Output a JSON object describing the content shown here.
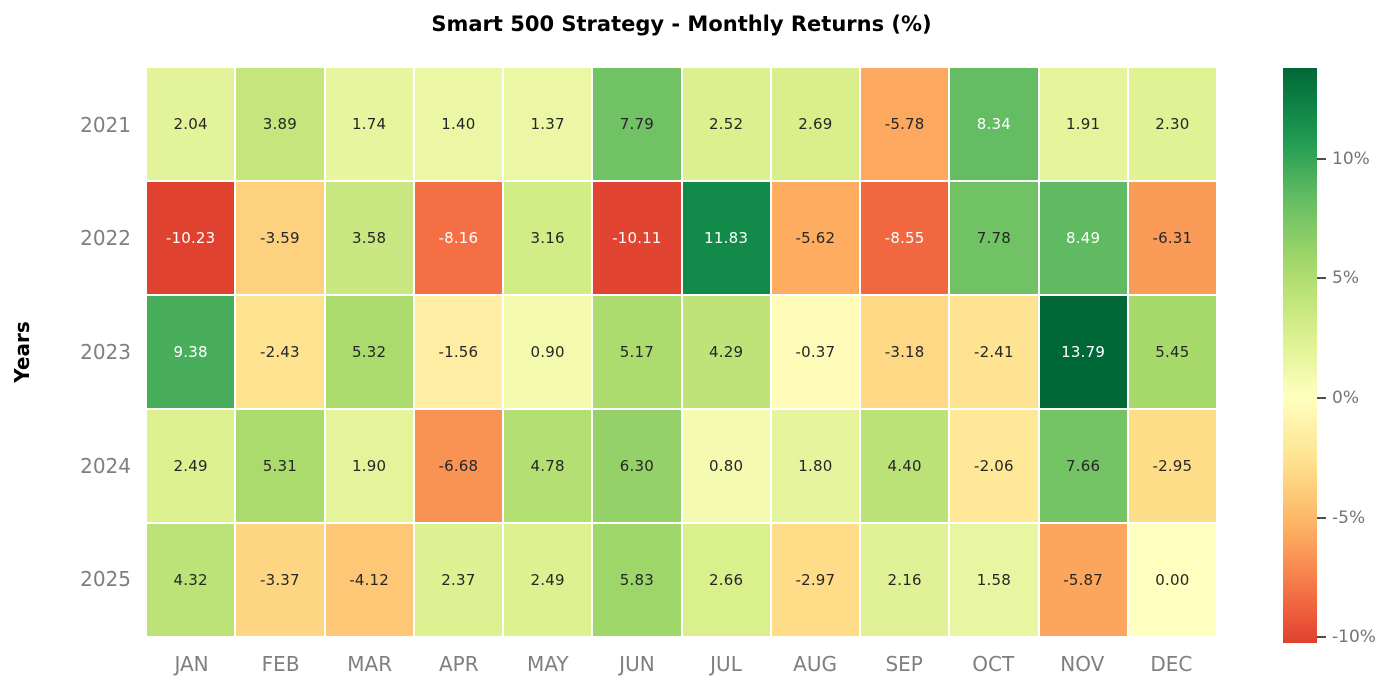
{
  "chart": {
    "title": "Smart 500 Strategy - Monthly Returns (%)",
    "y_axis_label": "Years"
  },
  "chart_data": {
    "type": "heatmap",
    "title": "Smart 500 Strategy - Monthly Returns (%)",
    "xlabel": "",
    "ylabel": "Years",
    "rows": [
      "2021",
      "2022",
      "2023",
      "2024",
      "2025"
    ],
    "columns": [
      "JAN",
      "FEB",
      "MAR",
      "APR",
      "MAY",
      "JUN",
      "JUL",
      "AUG",
      "SEP",
      "OCT",
      "NOV",
      "DEC"
    ],
    "values": [
      [
        2.04,
        3.89,
        1.74,
        1.4,
        1.37,
        7.79,
        2.52,
        2.69,
        -5.78,
        8.34,
        1.91,
        2.3
      ],
      [
        -10.23,
        -3.59,
        3.58,
        -8.16,
        3.16,
        -10.11,
        11.83,
        -5.62,
        -8.55,
        7.78,
        8.49,
        -6.31
      ],
      [
        9.38,
        -2.43,
        5.32,
        -1.56,
        0.9,
        5.17,
        4.29,
        -0.37,
        -3.18,
        -2.41,
        13.79,
        5.45
      ],
      [
        2.49,
        5.31,
        1.9,
        -6.68,
        4.78,
        6.3,
        0.8,
        1.8,
        4.4,
        -2.06,
        7.66,
        -2.95
      ],
      [
        4.32,
        -3.37,
        -4.12,
        2.37,
        2.49,
        5.83,
        2.66,
        -2.97,
        2.16,
        1.58,
        -5.87,
        0.0
      ]
    ],
    "value_decimals": 2,
    "grid": false,
    "legend_position": "right-colorbar",
    "colormap_stops": [
      [
        0.0,
        "#a50026"
      ],
      [
        0.1,
        "#d73027"
      ],
      [
        0.2,
        "#f46d43"
      ],
      [
        0.3,
        "#fdae61"
      ],
      [
        0.4,
        "#fee08b"
      ],
      [
        0.5,
        "#ffffbf"
      ],
      [
        0.6,
        "#d9ef8b"
      ],
      [
        0.7,
        "#a6d96a"
      ],
      [
        0.8,
        "#66bd63"
      ],
      [
        0.9,
        "#1a9850"
      ],
      [
        1.0,
        "#006837"
      ]
    ],
    "scale": {
      "vmin": -13.79,
      "vmax": 13.79,
      "center": 0
    },
    "colorbar": {
      "data_min": -10.23,
      "data_max": 13.79,
      "tick_values": [
        10,
        5,
        0,
        -5,
        -10
      ],
      "tick_labels": [
        "10%",
        "5%",
        "0%",
        "-5%",
        "-10%"
      ]
    },
    "cell_text_colors": {
      "dark": "#262626",
      "light": "#ffffff",
      "luminance_threshold": 0.408
    },
    "axis_tick_color": "#7f7f7f",
    "title_color": "#000000"
  }
}
